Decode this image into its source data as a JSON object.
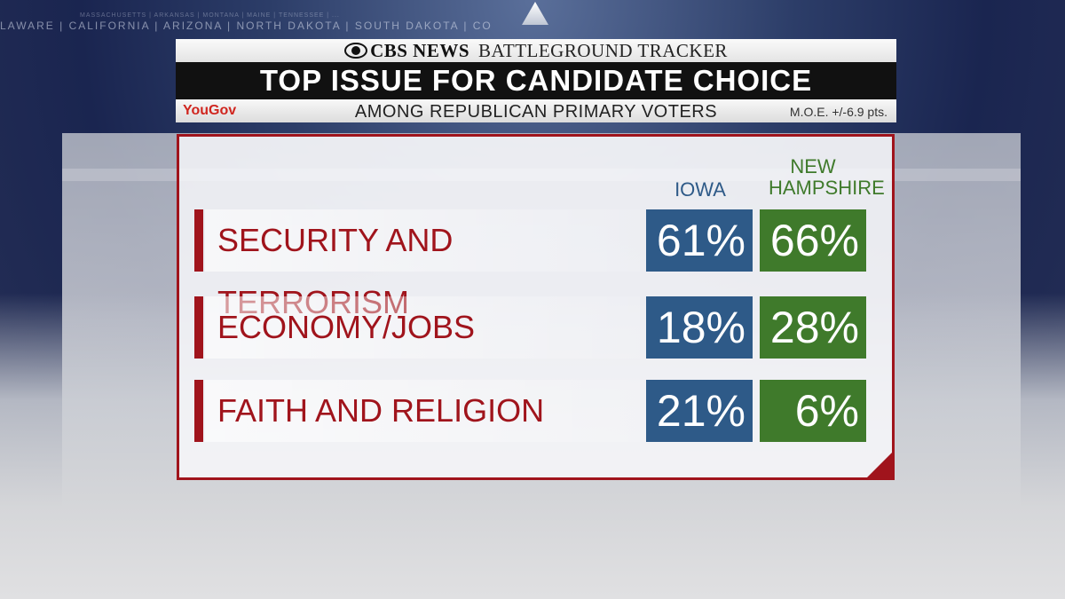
{
  "background": {
    "states_line": "LAWARE | CALIFORNIA | ARIZONA | NORTH DAKOTA | SOUTH DAKOTA | CO",
    "states_small": "MASSACHUSETTS | ARKANSAS | MONTANA | MAINE | TENNESSEE | ..."
  },
  "header": {
    "brand": "CBS NEWS",
    "tracker": "BATTLEGROUND TRACKER",
    "title": "TOP ISSUE FOR CANDIDATE CHOICE",
    "logo": "YouGov",
    "subtitle": "AMONG REPUBLICAN PRIMARY VOTERS",
    "moe": "M.O.E. +/-6.9 pts."
  },
  "colors": {
    "accent_red": "#a0141c",
    "iowa_blue": "#2e5a88",
    "nh_green": "#3f7a2b"
  },
  "chart_data": {
    "type": "table",
    "title": "TOP ISSUE FOR CANDIDATE CHOICE",
    "subtitle": "AMONG REPUBLICAN PRIMARY VOTERS",
    "columns": [
      {
        "name": "IOWA",
        "color": "#2e5a88"
      },
      {
        "name": "NEW HAMPSHIRE",
        "color": "#3f7a2b"
      }
    ],
    "rows": [
      {
        "label": "SECURITY AND TERRORISM",
        "values": [
          "61%",
          "66%"
        ]
      },
      {
        "label": "ECONOMY/JOBS",
        "values": [
          "18%",
          "28%"
        ]
      },
      {
        "label": "FAITH AND RELIGION",
        "values": [
          "21%",
          "6%"
        ]
      }
    ],
    "series": [
      {
        "name": "IOWA",
        "values": [
          61,
          18,
          21
        ]
      },
      {
        "name": "NEW HAMPSHIRE",
        "values": [
          66,
          28,
          6
        ]
      }
    ],
    "categories": [
      "SECURITY AND TERRORISM",
      "ECONOMY/JOBS",
      "FAITH AND RELIGION"
    ]
  }
}
